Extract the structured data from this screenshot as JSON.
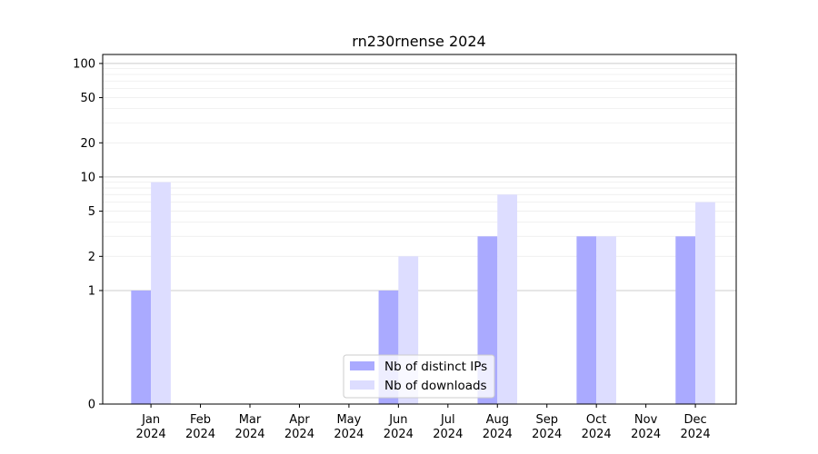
{
  "chart_data": {
    "type": "bar",
    "title": "rn230rnense 2024",
    "xlabel": "",
    "ylabel": "",
    "categories": [
      "Jan\n2024",
      "Feb\n2024",
      "Mar\n2024",
      "Apr\n2024",
      "May\n2024",
      "Jun\n2024",
      "Jul\n2024",
      "Aug\n2024",
      "Sep\n2024",
      "Oct\n2024",
      "Nov\n2024",
      "Dec\n2024"
    ],
    "series": [
      {
        "name": "Nb of distinct IPs",
        "color": "#aaaaff",
        "values": [
          1,
          0,
          0,
          0,
          0,
          1,
          0,
          3,
          0,
          3,
          0,
          3
        ]
      },
      {
        "name": "Nb of downloads",
        "color": "#ddddff",
        "values": [
          9,
          0,
          0,
          0,
          0,
          2,
          0,
          7,
          0,
          3,
          0,
          6
        ]
      }
    ],
    "y_scale": "symlog",
    "ylim": [
      0,
      120
    ],
    "yticks": [
      0,
      1,
      2,
      5,
      10,
      20,
      50,
      100
    ],
    "grid": true,
    "legend_position": "lower-center"
  }
}
